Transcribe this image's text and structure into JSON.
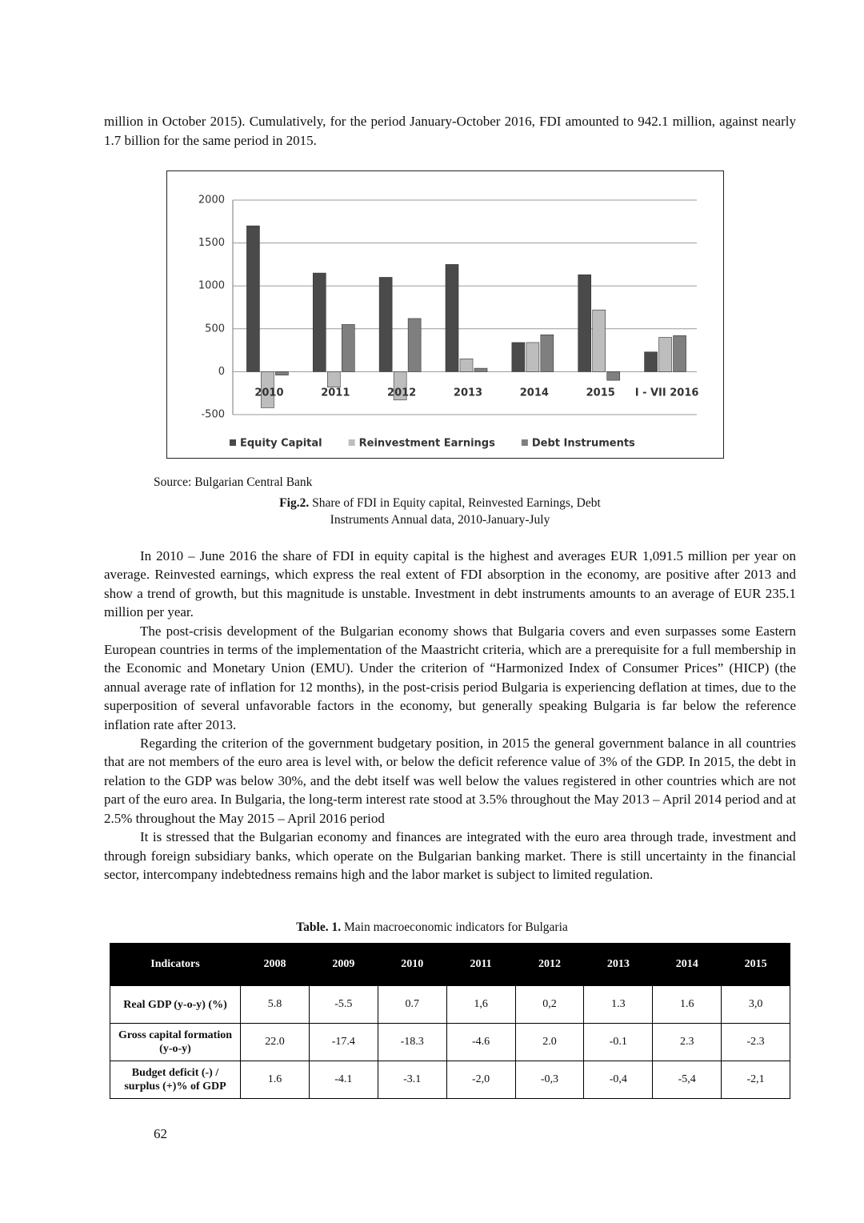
{
  "intro": "million in October 2015). Cumulatively, for the period January-October 2016, FDI amounted to 942.1 million, against nearly 1.7 billion for the same period in 2015.",
  "chart_data": {
    "type": "bar",
    "categories": [
      "2010",
      "2011",
      "2012",
      "2013",
      "2014",
      "2015",
      "I - VII 2016"
    ],
    "series": [
      {
        "name": "Equity Capital",
        "color": "#4a4a4a",
        "values": [
          1700,
          1150,
          1100,
          1250,
          340,
          1130,
          230
        ]
      },
      {
        "name": "Reinvestment Earnings",
        "color": "#bdbdbd",
        "values": [
          -420,
          -180,
          -330,
          150,
          340,
          720,
          400
        ]
      },
      {
        "name": "Debt Instruments",
        "color": "#7f7f7f",
        "values": [
          -40,
          550,
          620,
          40,
          430,
          -100,
          420
        ]
      }
    ],
    "ylim": [
      -500,
      2000
    ],
    "yticks": [
      -500,
      0,
      500,
      1000,
      1500,
      2000
    ],
    "grid": true,
    "legend": "bottom"
  },
  "source": "Source: Bulgarian Central Bank",
  "caption": {
    "label": "Fig.2.",
    "text": "Share of FDI in Equity capital, Reinvested Earnings, Debt Instruments Annual data, 2010-January-July"
  },
  "paragraphs": [
    "In 2010 – June 2016 the share of FDI in equity capital is the highest and averages EUR 1,091.5 million per year on average. Reinvested earnings, which express the real extent of FDI absorption in the economy, are positive after 2013 and show a trend of growth, but this magnitude is unstable. Investment in debt instruments amounts to an average of EUR 235.1 million per year.",
    "The post-crisis development of the Bulgarian economy shows that Bulgaria covers and even surpasses some Eastern European countries in terms of the implementation of the Maastricht criteria, which are a prerequisite for a full membership in the Economic and Monetary Union (EMU). Under the criterion of “Harmonized Index of Consumer Prices” (HICP) (the annual average rate of inflation for 12 months), in the post-crisis period Bulgaria is experiencing deflation at times, due to the superposition of several unfavorable factors in the economy, but generally speaking Bulgaria is far below the reference inflation rate after 2013.",
    "Regarding the criterion of the government budgetary position, in 2015 the general government balance in all countries that are not members of the euro area is level with, or below the deficit reference value of 3% of the GDP. In 2015, the debt in relation to the GDP was below 30%, and the debt itself was well below the values registered in other countries which are not part of the euro area. In Bulgaria, the long-term interest rate stood at 3.5% throughout the May 2013 – April 2014 period and at 2.5% throughout the May 2015 – April 2016 period",
    "It is stressed that the Bulgarian economy and finances are integrated with the euro area through trade, investment and through foreign subsidiary banks, which operate on the Bulgarian banking market. There is still uncertainty in the financial sector, intercompany indebtedness remains high and the labor market is subject to limited regulation."
  ],
  "table": {
    "title_label": "Table. 1.",
    "title": "Main macroeconomic indicators for Bulgaria",
    "header": [
      "Indicators",
      "2008",
      "2009",
      "2010",
      "2011",
      "2012",
      "2013",
      "2014",
      "2015"
    ],
    "rows": [
      [
        "Real GDP (y-o-y) (%)",
        "5.8",
        "-5.5",
        "0.7",
        "1,6",
        "0,2",
        "1.3",
        "1.6",
        "3,0"
      ],
      [
        "Gross capital formation (y-o-y)",
        "22.0",
        "-17.4",
        "-18.3",
        "-4.6",
        "2.0",
        "-0.1",
        "2.3",
        "-2.3"
      ],
      [
        "Budget deficit (-) / surplus (+)% of GDP",
        "1.6",
        "-4.1",
        "-3.1",
        "-2,0",
        "-0,3",
        "-0,4",
        "-5,4",
        "-2,1"
      ]
    ]
  },
  "page_number": "62"
}
